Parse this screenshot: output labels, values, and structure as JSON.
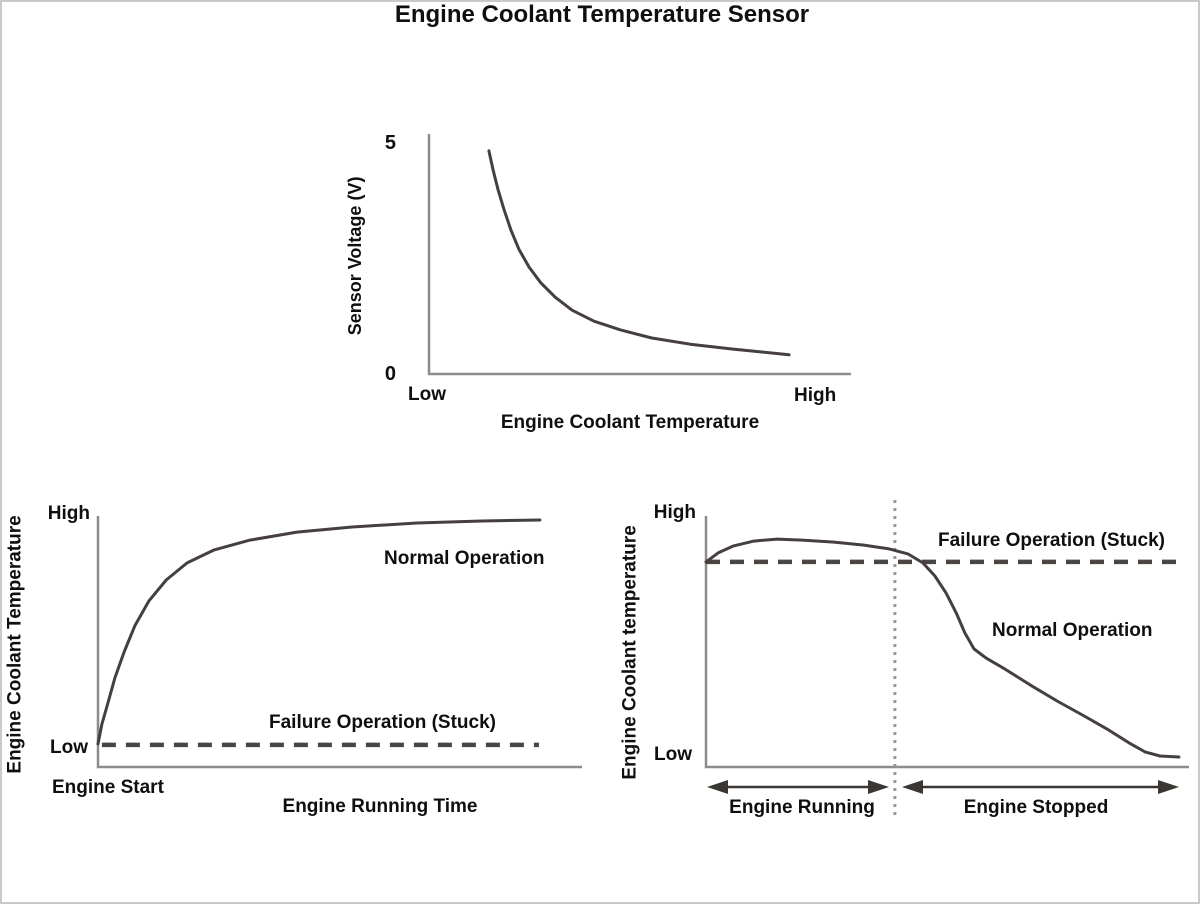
{
  "figure": {
    "title": "Engine Coolant Temperature Sensor",
    "background": "#ffffff",
    "colors": {
      "axis": "#8c8c8c",
      "curve": "#453f3d",
      "dashed": "#4a4442",
      "dotted": "#979797",
      "arrow": "#3a3632",
      "text": "#0f0f0f"
    }
  },
  "charts": {
    "voltage": {
      "y_axis_label": "Sensor Voltage (V)",
      "y_tick_top": "5",
      "y_tick_bottom": "0",
      "x_tick_left": "Low",
      "x_tick_right": "High",
      "x_axis_label": "Engine Coolant Temperature"
    },
    "warmup": {
      "y_axis_label": "Engine Coolant Temperature",
      "y_tick_top": "High",
      "y_tick_bottom": "Low",
      "origin_label": "Engine Start",
      "x_axis_label": "Engine Running Time",
      "curve_label": "Normal Operation",
      "failure_label": "Failure Operation (Stuck)"
    },
    "cooldown": {
      "y_axis_label": "Engine Coolant temperature",
      "y_tick_top": "High",
      "y_tick_bottom": "Low",
      "curve_label": "Normal Operation",
      "failure_label": "Failure Operation (Stuck)",
      "phase_left_label": "Engine Running",
      "phase_right_label": "Engine Stopped"
    }
  },
  "chart_data": [
    {
      "type": "line",
      "title": "Engine Coolant Temperature Sensor",
      "xlabel": "Engine Coolant Temperature",
      "ylabel": "Sensor Voltage (V)",
      "x_axis_qualitative": [
        "Low",
        "High"
      ],
      "xlim": [
        0,
        100
      ],
      "ylim": [
        0,
        5
      ],
      "yticks": [
        0,
        5
      ],
      "grid": false,
      "legend": "none",
      "series": [
        {
          "name": "Sensor voltage vs coolant temperature",
          "style": "solid",
          "points": [
            [
              14.2,
              4.65
            ],
            [
              15.2,
              4.25
            ],
            [
              16.4,
              3.83
            ],
            [
              17.8,
              3.42
            ],
            [
              19.4,
              3.0
            ],
            [
              21.3,
              2.6
            ],
            [
              23.7,
              2.23
            ],
            [
              26.5,
              1.9
            ],
            [
              29.9,
              1.6
            ],
            [
              33.9,
              1.33
            ],
            [
              39.1,
              1.1
            ],
            [
              45.3,
              0.92
            ],
            [
              52.8,
              0.75
            ],
            [
              61.9,
              0.62
            ],
            [
              71.8,
              0.52
            ],
            [
              85.3,
              0.4
            ]
          ]
        }
      ]
    },
    {
      "type": "line",
      "xlabel": "Engine Running Time",
      "ylabel": "Engine Coolant Temperature",
      "x_origin_label": "Engine Start",
      "y_axis_qualitative": [
        "Low",
        "High"
      ],
      "xlim": [
        0,
        100
      ],
      "ylim": [
        0,
        1
      ],
      "grid": false,
      "legend": "inline-annotations",
      "series": [
        {
          "name": "Normal Operation",
          "style": "solid",
          "points": [
            [
              0,
              0.092
            ],
            [
              0.8,
              0.171
            ],
            [
              2.1,
              0.259
            ],
            [
              3.5,
              0.355
            ],
            [
              5.4,
              0.458
            ],
            [
              7.6,
              0.562
            ],
            [
              10.5,
              0.661
            ],
            [
              14.1,
              0.745
            ],
            [
              18.4,
              0.813
            ],
            [
              24.0,
              0.865
            ],
            [
              31.4,
              0.904
            ],
            [
              41.1,
              0.936
            ],
            [
              52.5,
              0.956
            ],
            [
              65.9,
              0.972
            ],
            [
              79.3,
              0.98
            ],
            [
              91.3,
              0.984
            ]
          ]
        },
        {
          "name": "Failure Operation (Stuck)",
          "style": "dashed",
          "points": [
            [
              0.8,
              0.088
            ],
            [
              91.1,
              0.088
            ]
          ]
        }
      ]
    },
    {
      "type": "line",
      "xlabel": "",
      "ylabel": "Engine Coolant temperature",
      "y_axis_qualitative": [
        "Low",
        "High"
      ],
      "xlim": [
        0,
        100
      ],
      "ylim": [
        0,
        1
      ],
      "grid": false,
      "legend": "inline-annotations",
      "phase_boundary_x": 39.1,
      "phases": [
        {
          "label": "Engine Running",
          "x_range": [
            0,
            39.1
          ]
        },
        {
          "label": "Engine Stopped",
          "x_range": [
            39.1,
            100
          ]
        }
      ],
      "series": [
        {
          "name": "Normal Operation",
          "style": "solid",
          "points": [
            [
              0,
              0.817
            ],
            [
              2.5,
              0.853
            ],
            [
              5.6,
              0.88
            ],
            [
              9.9,
              0.9
            ],
            [
              14.7,
              0.908
            ],
            [
              19.9,
              0.904
            ],
            [
              26.5,
              0.896
            ],
            [
              32.7,
              0.884
            ],
            [
              37.9,
              0.869
            ],
            [
              41.8,
              0.849
            ],
            [
              44.9,
              0.813
            ],
            [
              47.4,
              0.761
            ],
            [
              49.7,
              0.693
            ],
            [
              51.8,
              0.614
            ],
            [
              53.6,
              0.534
            ],
            [
              55.5,
              0.47
            ],
            [
              58.0,
              0.434
            ],
            [
              61.9,
              0.39
            ],
            [
              67.1,
              0.327
            ],
            [
              72.7,
              0.263
            ],
            [
              78.3,
              0.203
            ],
            [
              83.4,
              0.147
            ],
            [
              87.6,
              0.096
            ],
            [
              90.9,
              0.06
            ],
            [
              94.0,
              0.044
            ],
            [
              97.9,
              0.04
            ]
          ]
        },
        {
          "name": "Failure Operation (Stuck)",
          "style": "dashed",
          "points": [
            [
              0,
              0.817
            ],
            [
              98.1,
              0.817
            ]
          ]
        }
      ]
    }
  ]
}
